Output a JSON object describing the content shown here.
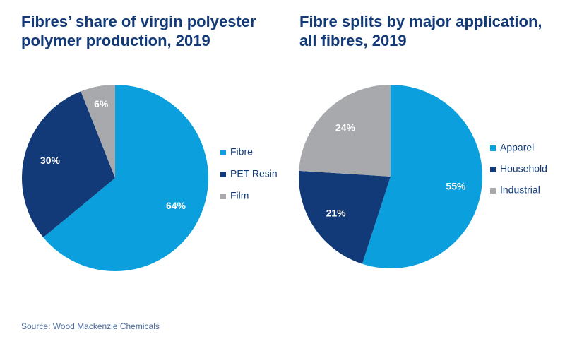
{
  "chart_data": [
    {
      "type": "pie",
      "title": [
        "Fibres’ share of virgin polyester",
        "polymer production, 2019"
      ],
      "categories": [
        "Fibre",
        "PET Resin",
        "Film"
      ],
      "values": [
        64,
        30,
        6
      ],
      "value_labels": [
        "64%",
        "30%",
        "6%"
      ],
      "colors": [
        "#0ba0dd",
        "#123a78",
        "#a7a9ac"
      ]
    },
    {
      "type": "pie",
      "title": [
        "Fibre splits by major application,",
        "all fibres, 2019"
      ],
      "categories": [
        "Apparel",
        "Household",
        "Industrial"
      ],
      "values": [
        55,
        21,
        24
      ],
      "value_labels": [
        "55%",
        "21%",
        "24%"
      ],
      "colors": [
        "#0ba0dd",
        "#123a78",
        "#a7a9ac"
      ]
    }
  ],
  "source": "Source: Wood Mackenzie Chemicals"
}
